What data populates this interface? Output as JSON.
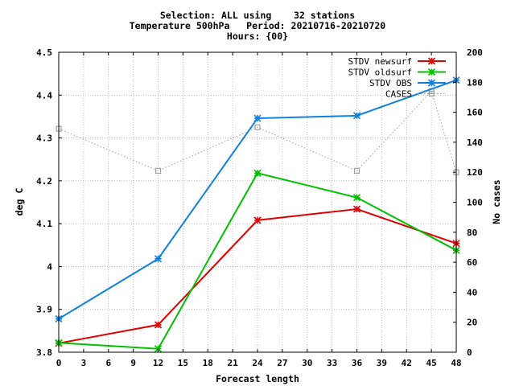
{
  "title_lines": [
    "Selection: ALL using    32 stations",
    "Temperature 500hPa   Period: 20210716-20210720",
    "Hours: {00}"
  ],
  "chart_data": {
    "type": "line",
    "xlabel": "Forecast length",
    "ylabel": "deg C",
    "y2label": "No cases",
    "xlim": [
      0,
      48
    ],
    "ylim": [
      3.8,
      4.5
    ],
    "y2lim": [
      0,
      200
    ],
    "xticks": [
      "0",
      "3",
      "6",
      "9",
      "12",
      "15",
      "18",
      "21",
      "24",
      "27",
      "30",
      "33",
      "36",
      "39",
      "42",
      "45",
      "48"
    ],
    "yticks": [
      "3.8",
      "3.9",
      "4",
      "4.1",
      "4.2",
      "4.3",
      "4.4",
      "4.5"
    ],
    "y2ticks": [
      "0",
      "20",
      "40",
      "60",
      "80",
      "100",
      "120",
      "140",
      "160",
      "180",
      "200"
    ],
    "grid": true,
    "legend_position": "top-right",
    "series": [
      {
        "name": "STDV newsurf",
        "axis": "y",
        "color": "#e00000",
        "marker": "x",
        "style": "solid",
        "x": [
          0,
          12,
          24,
          36,
          48
        ],
        "values": [
          3.821,
          3.864,
          4.108,
          4.134,
          4.054
        ]
      },
      {
        "name": "STDV oldsurf",
        "axis": "y",
        "color": "#00c000",
        "marker": "x",
        "style": "solid",
        "x": [
          0,
          12,
          24,
          36,
          48
        ],
        "values": [
          3.822,
          3.808,
          4.218,
          4.161,
          4.038
        ]
      },
      {
        "name": "STDV OBS",
        "axis": "y",
        "color": "#1080e0",
        "marker": "x",
        "style": "solid",
        "x": [
          0,
          12,
          24,
          36,
          48
        ],
        "values": [
          3.878,
          4.018,
          4.346,
          4.352,
          4.435
        ]
      },
      {
        "name": "CASES",
        "axis": "y2",
        "color": "#a0a0a0",
        "marker": "square",
        "style": "dotted",
        "x": [
          0,
          12,
          24,
          36,
          45,
          48
        ],
        "values": [
          149,
          121,
          150,
          121,
          174,
          120
        ]
      }
    ]
  }
}
